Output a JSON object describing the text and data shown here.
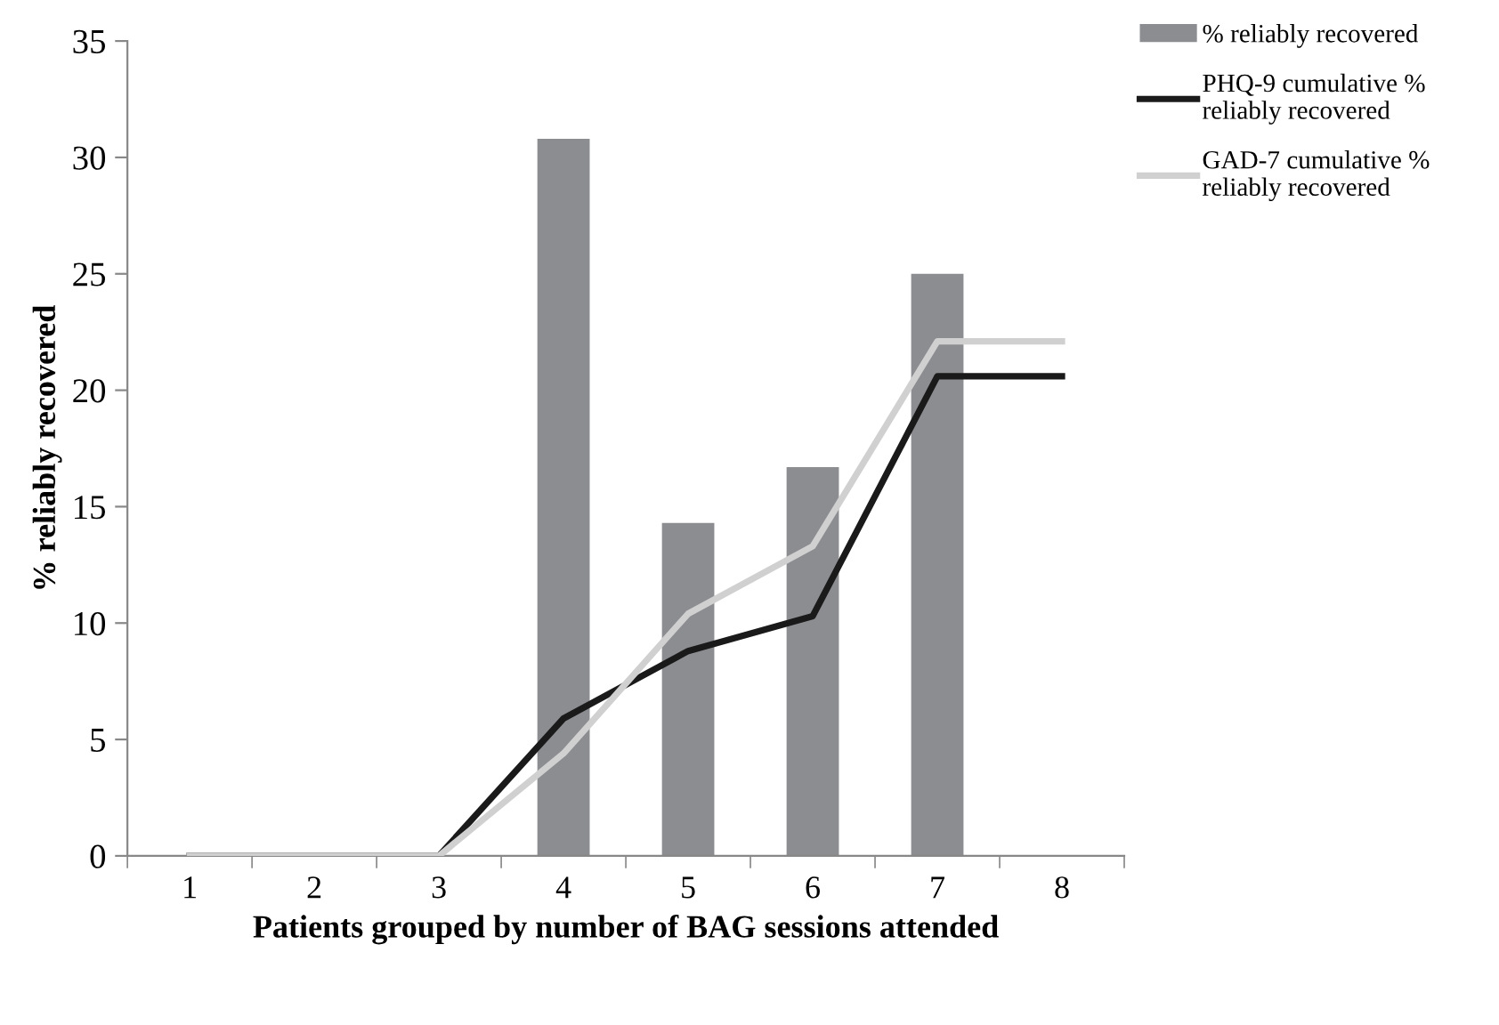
{
  "chart_data": {
    "type": "bar",
    "xlabel": "Patients grouped by number of BAG sessions attended",
    "ylabel": "% reliably recovered",
    "categories": [
      "1",
      "2",
      "3",
      "4",
      "5",
      "6",
      "7",
      "8"
    ],
    "series": [
      {
        "name": "% reliably recovered",
        "color": "#8c8d91",
        "values": [
          0,
          0,
          0,
          30.8,
          14.3,
          16.7,
          25,
          0
        ]
      },
      {
        "name": "PHQ-9 cumulative % reliably recovered",
        "type": "line",
        "color": "#1a1a1a",
        "values": [
          0,
          0,
          0,
          5.9,
          8.8,
          10.3,
          20.6,
          20.6
        ]
      },
      {
        "name": "GAD-7 cumulative % reliably recovered",
        "type": "line",
        "color": "#d0d0d0",
        "values": [
          0,
          0,
          0,
          4.4,
          10.4,
          13.3,
          22.1,
          22.1
        ]
      }
    ],
    "ylim": [
      0,
      35
    ],
    "yticks": [
      0,
      5,
      10,
      15,
      20,
      25,
      30,
      35
    ],
    "grid": false,
    "legend": "top right",
    "marker": "none",
    "line_style": "solid"
  }
}
